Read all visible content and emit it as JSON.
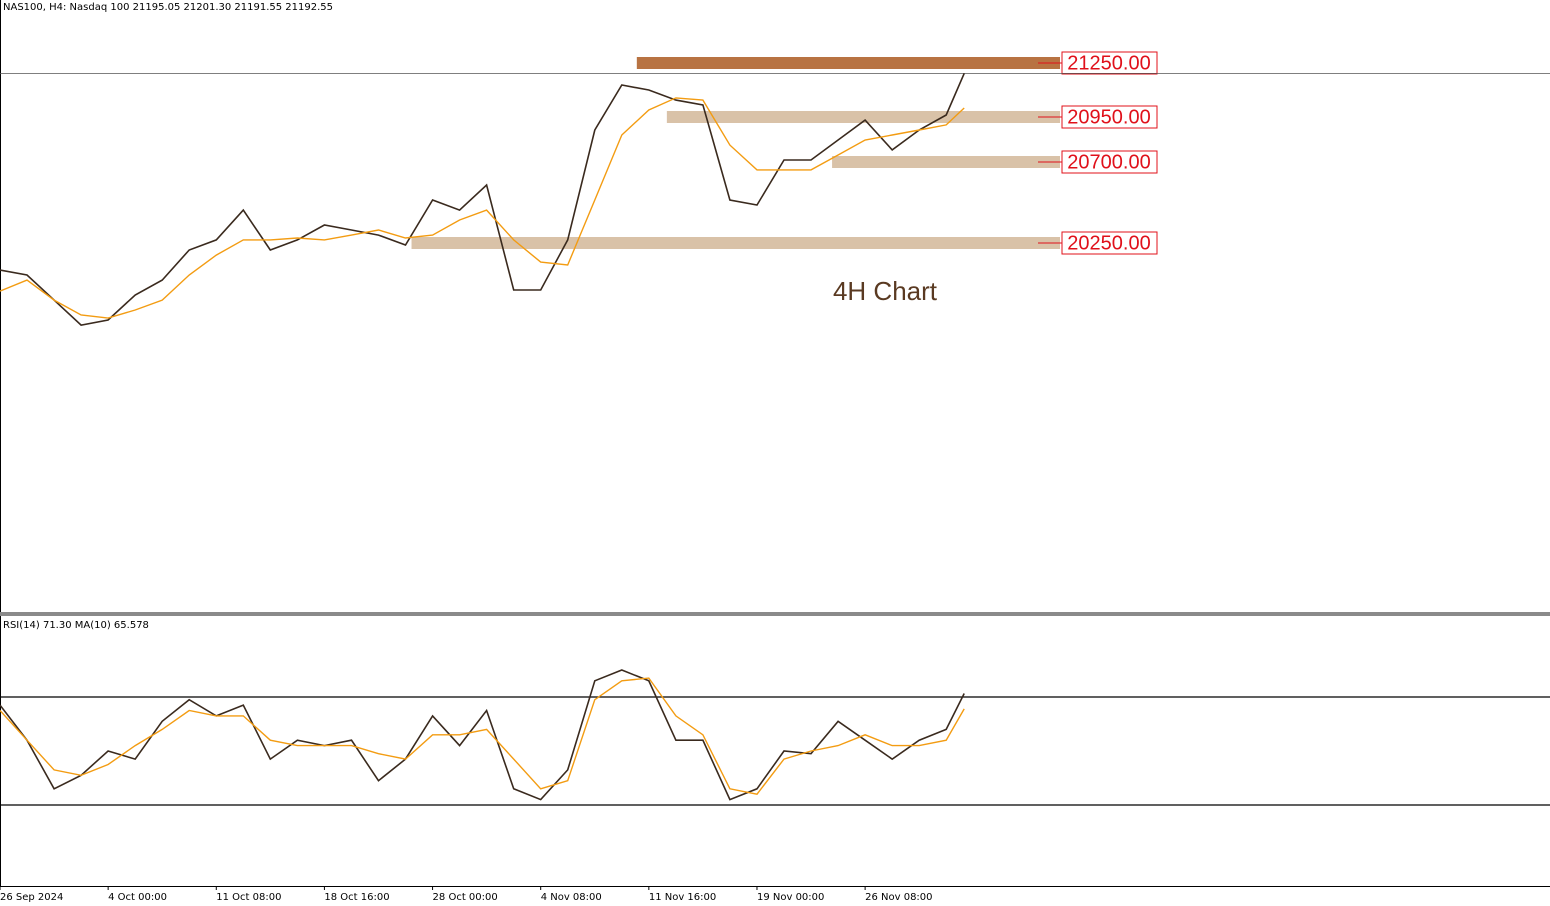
{
  "chart_data": [
    {
      "type": "line",
      "title": "NAS100, H4:  Nasdaq 100  21195.05 21201.30 21191.55 21192.55",
      "x": [
        0,
        9,
        18,
        27,
        36,
        45,
        54,
        63,
        72,
        81,
        90,
        99,
        108,
        117,
        126,
        135,
        144,
        153,
        162,
        171,
        180,
        189,
        198,
        207,
        216,
        225,
        234,
        243,
        252,
        261,
        270,
        279,
        288,
        297,
        306,
        315,
        321
      ],
      "xlim": [
        0,
        516
      ],
      "ylim": [
        18200,
        21600
      ],
      "series": [
        {
          "color": "#3a2a1e",
          "values": [
            20100,
            20072,
            19933,
            19794,
            19822,
            19961,
            20044,
            20211,
            20267,
            20433,
            20211,
            20267,
            20350,
            20322,
            20294,
            20239,
            20489,
            20433,
            20572,
            19989,
            19989,
            20267,
            20878,
            21128,
            21100,
            21044,
            21017,
            20489,
            20461,
            20711,
            20711,
            20822,
            20933,
            20767,
            20878,
            20961,
            21192
          ]
        },
        {
          "color": "#f39c12",
          "values": [
            19983,
            20044,
            19933,
            19850,
            19833,
            19878,
            19933,
            20072,
            20183,
            20267,
            20267,
            20278,
            20267,
            20294,
            20322,
            20278,
            20294,
            20378,
            20433,
            20267,
            20144,
            20128,
            20489,
            20850,
            20989,
            21056,
            21044,
            20794,
            20656,
            20656,
            20656,
            20739,
            20822,
            20850,
            20878,
            20906,
            21000
          ]
        }
      ],
      "levels": [
        {
          "value": 21250,
          "label": "21250.00",
          "start": 212,
          "color": "#b87342"
        },
        {
          "value": 20950,
          "label": "20950.00",
          "start": 222,
          "color": "#d9c2a8"
        },
        {
          "value": 20700,
          "label": "20700.00",
          "start": 277,
          "color": "#d9c2a8"
        },
        {
          "value": 20250,
          "label": "20250.00",
          "start": 137,
          "color": "#d9c2a8"
        }
      ],
      "last_price": 21192.55,
      "annotation": "4H Chart"
    },
    {
      "type": "line",
      "title": "RSI(14) 71.30 MA(10) 65.578",
      "x": [
        0,
        9,
        18,
        27,
        36,
        45,
        54,
        63,
        72,
        81,
        90,
        99,
        108,
        117,
        126,
        135,
        144,
        153,
        162,
        171,
        180,
        189,
        198,
        207,
        216,
        225,
        234,
        243,
        252,
        261,
        270,
        279,
        288,
        297,
        306,
        315,
        321
      ],
      "xlim": [
        0,
        516
      ],
      "ylim": [
        0,
        100
      ],
      "series": [
        {
          "color": "#3a2a1e",
          "values": [
            67,
            54,
            36,
            41,
            50,
            47,
            61,
            69,
            63,
            67,
            47,
            54,
            52,
            54,
            39,
            47,
            63,
            52,
            65,
            36,
            32,
            43,
            76,
            80,
            76,
            54,
            54,
            32,
            36,
            50,
            49,
            61,
            54,
            47,
            54,
            58,
            71.3
          ]
        },
        {
          "color": "#f39c12",
          "values": [
            65,
            54,
            43,
            41,
            45,
            52,
            58,
            65,
            63,
            63,
            54,
            52,
            52,
            52,
            49,
            47,
            56,
            56,
            58,
            47,
            36,
            39,
            69,
            76,
            77,
            63,
            56,
            36,
            34,
            47,
            50,
            52,
            56,
            52,
            52,
            54,
            65.578
          ]
        }
      ],
      "levels": [
        70,
        30
      ],
      "xticks": [
        {
          "value": 0,
          "label": "26 Sep 2024"
        },
        {
          "value": 36,
          "label": "4 Oct 00:00"
        },
        {
          "value": 72,
          "label": "11 Oct 08:00"
        },
        {
          "value": 108,
          "label": "18 Oct 16:00"
        },
        {
          "value": 144,
          "label": "28 Oct 00:00"
        },
        {
          "value": 180,
          "label": "4 Nov 08:00"
        },
        {
          "value": 216,
          "label": "11 Nov 16:00"
        },
        {
          "value": 252,
          "label": "19 Nov 00:00"
        },
        {
          "value": 288,
          "label": "26 Nov 08:00"
        }
      ]
    }
  ]
}
